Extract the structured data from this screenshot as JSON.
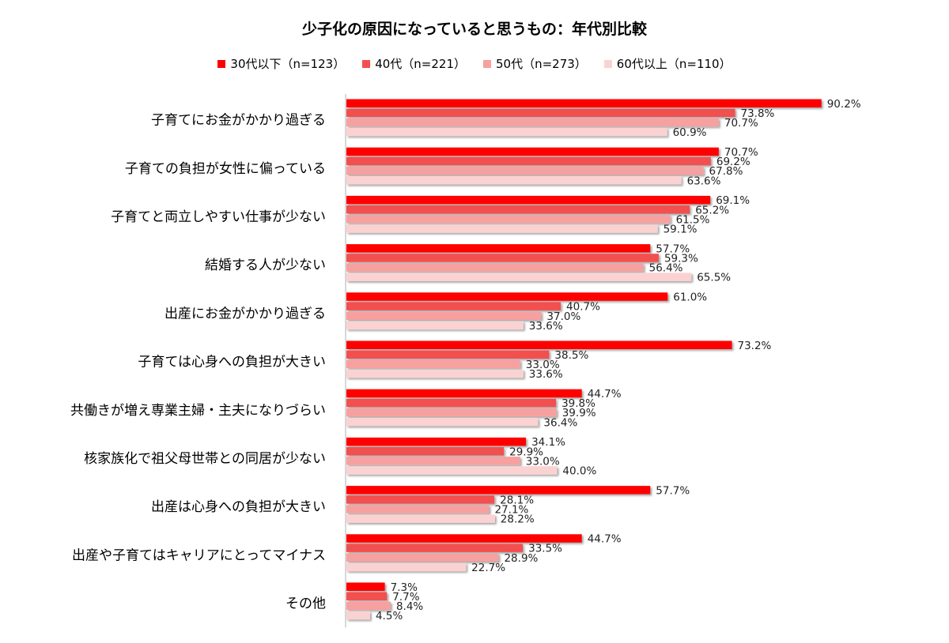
{
  "chart_data": {
    "type": "bar",
    "orientation": "horizontal",
    "title": "少子化の原因になっていると思うもの：年代別比較",
    "categories": [
      "子育てにお金がかかり過ぎる",
      "子育ての負担が女性に偏っている",
      "子育てと両立しやすい仕事が少ない",
      "結婚する人が少ない",
      "出産にお金がかかり過ぎる",
      "子育ては心身への負担が大きい",
      "共働きが増え専業主婦・主夫になりづらい",
      "核家族化で祖父母世帯との同居が少ない",
      "出産は心身への負担が大きい",
      "出産や子育てはキャリアにとってマイナス",
      "その他"
    ],
    "series": [
      {
        "name": "30代以下（n=123）",
        "color": "#ff0000",
        "values": [
          90.2,
          70.7,
          69.1,
          57.7,
          61.0,
          73.2,
          44.7,
          34.1,
          57.7,
          44.7,
          7.3
        ]
      },
      {
        "name": "40代（n=221）",
        "color": "#f25050",
        "values": [
          73.8,
          69.2,
          65.2,
          59.3,
          40.7,
          38.5,
          39.8,
          29.9,
          28.1,
          33.5,
          7.7
        ]
      },
      {
        "name": "50代（n=273）",
        "color": "#f7a0a0",
        "values": [
          70.7,
          67.8,
          61.5,
          56.4,
          37.0,
          33.0,
          39.9,
          33.0,
          27.1,
          28.9,
          8.4
        ]
      },
      {
        "name": "60代以上（n=110）",
        "color": "#fbd2d2",
        "values": [
          60.9,
          63.6,
          59.1,
          65.5,
          33.6,
          33.6,
          36.4,
          40.0,
          28.2,
          22.7,
          4.5
        ]
      }
    ],
    "value_suffix": "%",
    "xlim": [
      0,
      100
    ],
    "legend_position": "top",
    "grid": false
  }
}
